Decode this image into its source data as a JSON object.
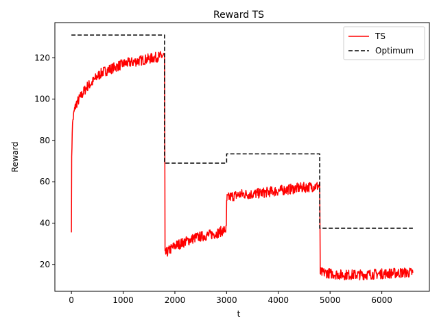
{
  "chart_data": {
    "type": "line",
    "title": "Reward TS",
    "xlabel": "t",
    "ylabel": "Reward",
    "xlim": [
      -320,
      6920
    ],
    "ylim": [
      7,
      137
    ],
    "xticks": [
      0,
      1000,
      2000,
      3000,
      4000,
      5000,
      6000
    ],
    "yticks": [
      20,
      40,
      60,
      80,
      100,
      120
    ],
    "legend_position": "top-right",
    "grid": false,
    "series": [
      {
        "name": "TS",
        "color": "#ff0000",
        "style": "solid",
        "noise_amplitude": 2.5,
        "x": [
          0,
          5,
          15,
          30,
          60,
          100,
          150,
          200,
          300,
          400,
          500,
          600,
          700,
          800,
          1000,
          1200,
          1400,
          1600,
          1780,
          1800,
          1810,
          1850,
          1900,
          2000,
          2200,
          2400,
          2600,
          2800,
          2995,
          3000,
          3010,
          3100,
          3300,
          3500,
          3800,
          4100,
          4400,
          4795,
          4800,
          4810,
          4900,
          5200,
          5600,
          6000,
          6400,
          6600
        ],
        "y": [
          38,
          70,
          85,
          90,
          95,
          98,
          100,
          102,
          106,
          108,
          111,
          113,
          114,
          115,
          117,
          118,
          119,
          120,
          121,
          121,
          25,
          26,
          27,
          29,
          31,
          33,
          34,
          35,
          37,
          50,
          52,
          53,
          54,
          54,
          55,
          56,
          57,
          58,
          58,
          16,
          16,
          15,
          15,
          15.5,
          16,
          16
        ]
      },
      {
        "name": "Optimum",
        "color": "#000000",
        "style": "dashed",
        "x": [
          0,
          1800,
          1800,
          3000,
          3000,
          4800,
          4800,
          6600
        ],
        "y": [
          131,
          131,
          69,
          69,
          73.5,
          73.5,
          37.5,
          37.5
        ]
      }
    ]
  }
}
